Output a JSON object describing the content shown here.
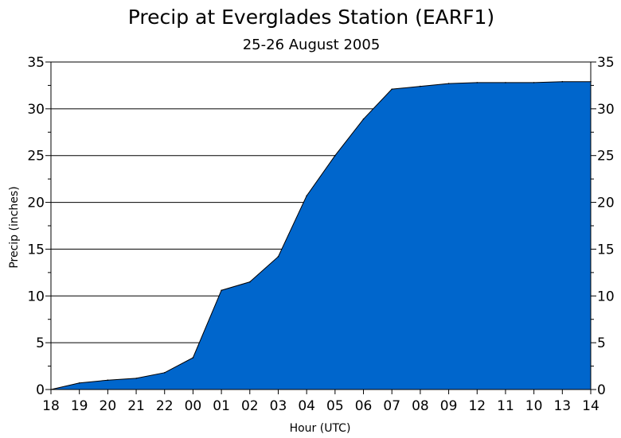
{
  "chart_data": {
    "type": "area",
    "title": "Precip at Everglades Station (EARF1)",
    "subtitle": "25-26 August 2005",
    "xlabel": "Hour (UTC)",
    "ylabel": "Precip (inches)",
    "categories": [
      "18",
      "19",
      "20",
      "21",
      "22",
      "00",
      "01",
      "02",
      "03",
      "04",
      "05",
      "06",
      "07",
      "08",
      "09",
      "12",
      "11",
      "10",
      "13",
      "14"
    ],
    "series": [
      {
        "values": [
          0.0,
          0.7,
          1.0,
          1.2,
          1.8,
          3.4,
          10.6,
          11.5,
          14.2,
          20.7,
          25.0,
          28.9,
          32.1,
          32.4,
          32.7,
          32.8,
          32.8,
          32.8,
          32.9,
          32.9
        ],
        "color": "#0066cc"
      }
    ],
    "ylim": [
      0,
      35
    ],
    "yticks": [
      0,
      5,
      10,
      15,
      20,
      25,
      30,
      35
    ],
    "ytick_labels": [
      "0",
      "5",
      "10",
      "15",
      "20",
      "25",
      "30",
      "35"
    ],
    "grid": "horizontal",
    "right_axis": true
  }
}
